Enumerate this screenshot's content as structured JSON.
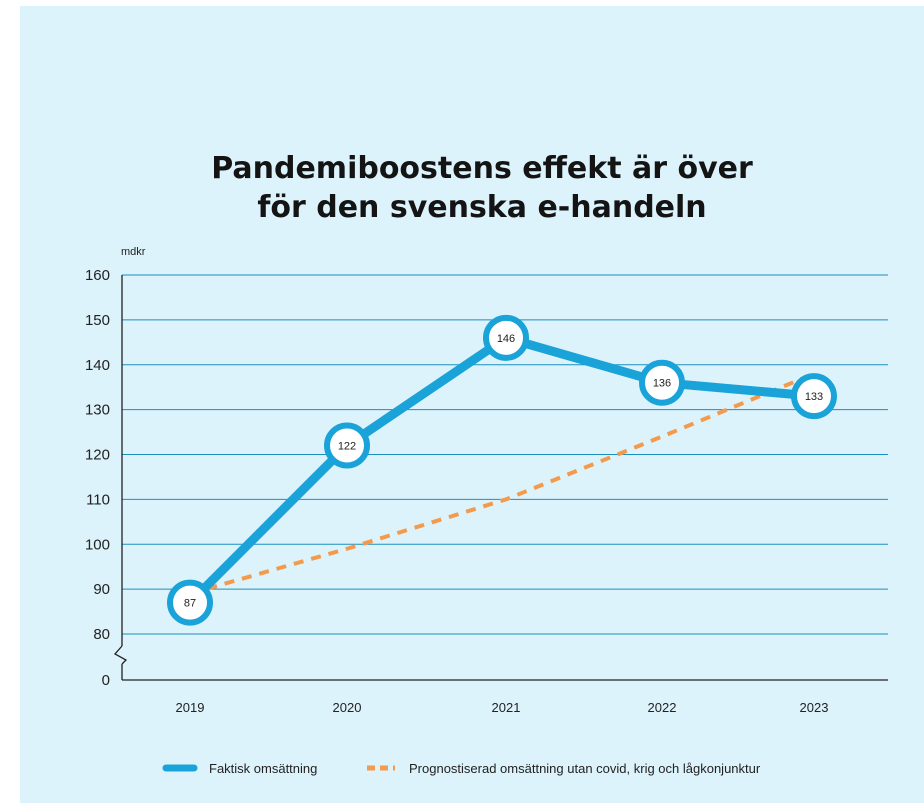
{
  "chart_data": {
    "type": "line",
    "title": [
      "Pandemiboostens effekt är över",
      "för den svenska e-handeln"
    ],
    "ylabel": "mdkr",
    "xlabel": "",
    "categories": [
      "2019",
      "2020",
      "2021",
      "2022",
      "2023"
    ],
    "yticks": [
      0,
      80,
      90,
      100,
      110,
      120,
      130,
      140,
      150,
      160
    ],
    "ylim": [
      80,
      160
    ],
    "axis_break": true,
    "grid": true,
    "legend_position": "bottom",
    "series": [
      {
        "name": "Faktisk omsättning",
        "values": [
          87,
          122,
          146,
          136,
          133
        ],
        "data_labels": [
          "87",
          "122",
          "146",
          "136",
          "133"
        ],
        "color": "#1aa3d8",
        "style": "solid"
      },
      {
        "name": "Prognostiserad omsättning utan covid, krig och lågkonjunktur",
        "values": [
          89,
          99,
          110,
          124,
          138
        ],
        "color": "#f39a4c",
        "style": "dashed"
      }
    ]
  }
}
